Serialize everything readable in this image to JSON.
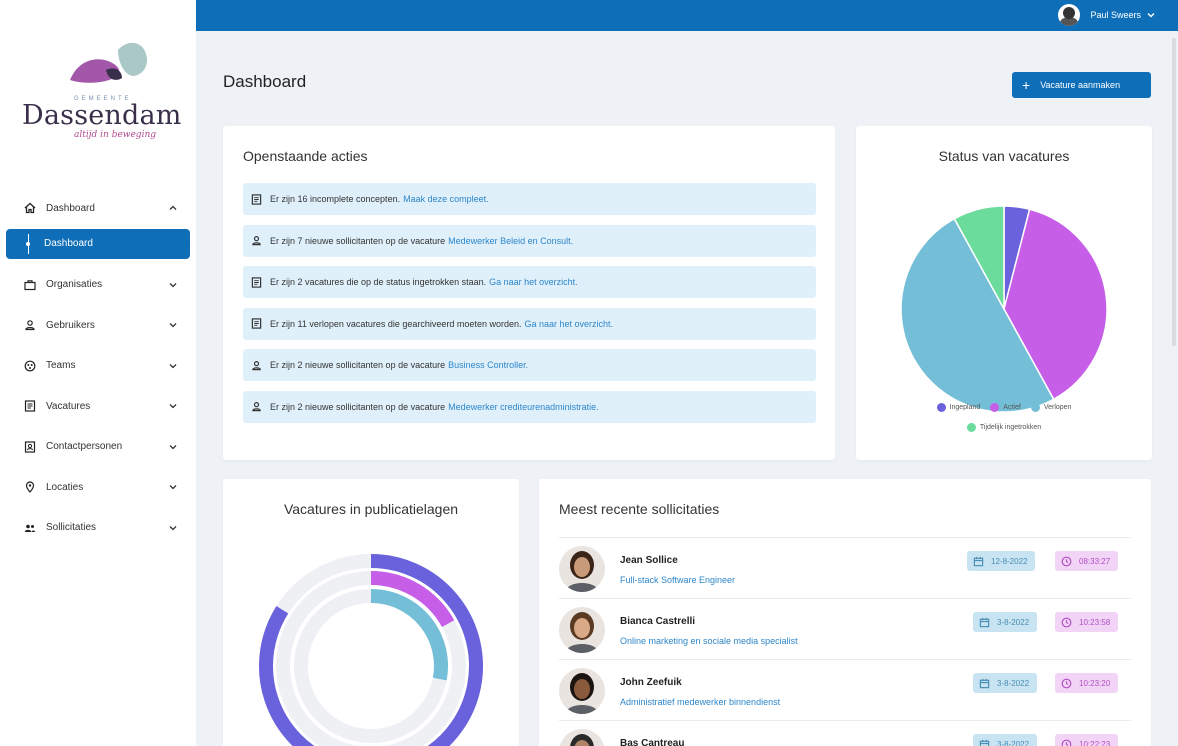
{
  "app": {
    "logo_gemeente": "GEMEENTE",
    "logo_name": "Dassendam",
    "logo_tagline": "altijd in beweging"
  },
  "user": {
    "name": "Paul Sweers"
  },
  "sidebar": {
    "items": [
      {
        "label": "Dashboard",
        "icon": "home-icon",
        "expanded": true
      },
      {
        "label": "Organisaties",
        "icon": "briefcase-icon"
      },
      {
        "label": "Gebruikers",
        "icon": "user-icon"
      },
      {
        "label": "Teams",
        "icon": "team-icon"
      },
      {
        "label": "Vacatures",
        "icon": "document-icon"
      },
      {
        "label": "Contactpersonen",
        "icon": "contact-card-icon"
      },
      {
        "label": "Locaties",
        "icon": "location-pin-icon"
      },
      {
        "label": "Sollicitaties",
        "icon": "users-icon"
      }
    ],
    "active_sub": "Dashboard"
  },
  "page": {
    "title": "Dashboard",
    "create_button": "Vacature aanmaken"
  },
  "actions": {
    "title": "Openstaande acties",
    "items": [
      {
        "icon": "document-icon",
        "text": "Er zijn 16 incomplete concepten.",
        "link": "Maak deze compleet."
      },
      {
        "icon": "user-icon",
        "text": "Er zijn 7 nieuwe sollicitanten op de vacature",
        "link": "Medewerker Beleid en Consult."
      },
      {
        "icon": "document-icon",
        "text": "Er zijn 2 vacatures die op de status ingetrokken staan.",
        "link": "Ga naar het overzicht."
      },
      {
        "icon": "document-icon",
        "text": "Er zijn 11 verlopen vacatures die gearchiveerd moeten worden.",
        "link": "Ga naar het overzicht."
      },
      {
        "icon": "user-icon",
        "text": "Er zijn 2 nieuwe sollicitanten op de vacature",
        "link": "Business Controller."
      },
      {
        "icon": "user-icon",
        "text": "Er zijn 2 nieuwe sollicitanten op de vacature",
        "link": "Medewerker crediteurenadministratie."
      }
    ]
  },
  "status_chart": {
    "title": "Status van vacatures",
    "legend": [
      {
        "label": "Ingepland",
        "color": "#6a62dc"
      },
      {
        "label": "Actief",
        "color": "#c65ee8"
      },
      {
        "label": "Verlopen",
        "color": "#74bfd7"
      },
      {
        "label": "Tijdelijk ingetrokken",
        "color": "#6bdc9c"
      }
    ]
  },
  "chart_data": [
    {
      "type": "pie",
      "title": "Status van vacatures",
      "categories": [
        "Ingepland",
        "Actief",
        "Verlopen",
        "Tijdelijk ingetrokken"
      ],
      "values": [
        4,
        38,
        50,
        8
      ],
      "colors": [
        "#6a62dc",
        "#c65ee8",
        "#74bfd7",
        "#6bdc9c"
      ],
      "legend_position": "bottom"
    },
    {
      "type": "pie",
      "title": "Vacatures in publicatielagen",
      "series": [
        {
          "value_pct": 84,
          "color": "#6a62dc"
        },
        {
          "value_pct": 17,
          "color": "#c65ee8"
        },
        {
          "value_pct": 28,
          "color": "#74bfd7"
        }
      ],
      "track_color": "#eef0f4"
    }
  ],
  "pub_chart": {
    "title": "Vacatures in publicatielagen"
  },
  "recent": {
    "title": "Meest recente sollicitaties",
    "rows": [
      {
        "name": "Jean Sollice",
        "role": "Full-stack Software Engineer",
        "date": "12-8-2022",
        "time": "08:33:27"
      },
      {
        "name": "Bianca Castrelli",
        "role": "Online marketing en sociale media specialist",
        "date": "3-8-2022",
        "time": "10:23:58"
      },
      {
        "name": "John Zeefuik",
        "role": "Administratief medewerker binnendienst",
        "date": "3-8-2022",
        "time": "10:23:20"
      },
      {
        "name": "Bas Cantreau",
        "role": "",
        "date": "3-8-2022",
        "time": "10:22:23"
      }
    ]
  }
}
